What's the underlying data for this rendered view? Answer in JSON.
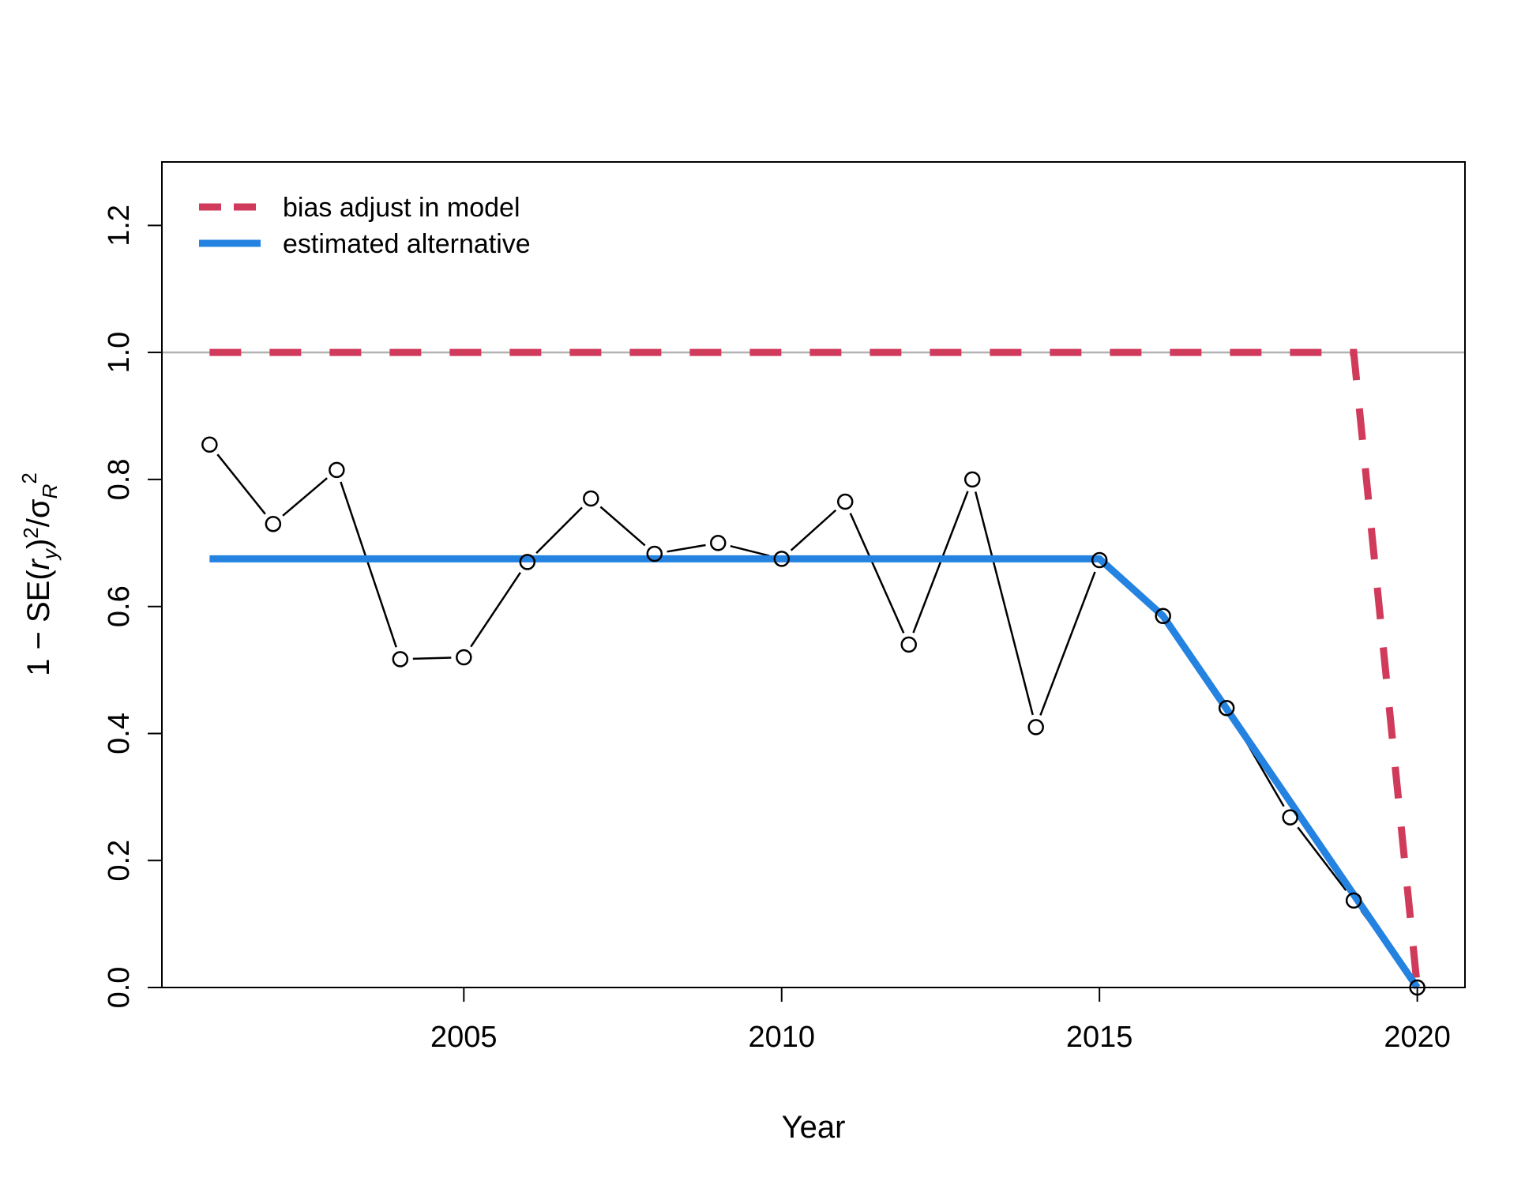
{
  "chart_data": {
    "type": "line",
    "xlabel": "Year",
    "ylabel": {
      "prefix": "1 − SE(",
      "r": "r",
      "hat": "^",
      "sub_y": "y",
      "mid": ")",
      "sq": "2",
      "slash": "/",
      "sigma": "σ",
      "sub_R": "R"
    },
    "xlim": [
      2000.25,
      2020.75
    ],
    "ylim": [
      0,
      1.3
    ],
    "x_ticks": [
      2005,
      2010,
      2015,
      2020
    ],
    "y_ticks": [
      0.0,
      0.2,
      0.4,
      0.6,
      0.8,
      1.0,
      1.2
    ],
    "y_tick_labels": [
      "0.0",
      "0.2",
      "0.4",
      "0.6",
      "0.8",
      "1.0",
      "1.2"
    ],
    "reference_line": {
      "y": 1.0,
      "color": "#b3b3b3"
    },
    "legend": {
      "position": "top-left",
      "entries": [
        {
          "label": "bias adjust in model",
          "color": "#d03b5b",
          "style": "dashed"
        },
        {
          "label": "estimated alternative",
          "color": "#2483e0",
          "style": "solid"
        }
      ]
    },
    "series": [
      {
        "id": "points",
        "color": "#000000",
        "style": "line-with-open-circles",
        "x": [
          2001,
          2002,
          2003,
          2004,
          2005,
          2006,
          2007,
          2008,
          2009,
          2010,
          2011,
          2012,
          2013,
          2014,
          2015,
          2016,
          2017,
          2018,
          2019,
          2020
        ],
        "y": [
          0.855,
          0.73,
          0.815,
          0.517,
          0.52,
          0.67,
          0.77,
          0.683,
          0.7,
          0.675,
          0.765,
          0.54,
          0.8,
          0.41,
          0.673,
          0.585,
          0.44,
          0.268,
          0.137,
          0.0
        ]
      },
      {
        "name": "bias adjust in model",
        "color": "#d03b5b",
        "style": "dashed",
        "x": [
          2001,
          2019,
          2020
        ],
        "y": [
          1.0,
          1.0,
          0.0
        ]
      },
      {
        "name": "estimated alternative",
        "color": "#2483e0",
        "style": "solid",
        "x": [
          2001,
          2015,
          2016,
          2020
        ],
        "y": [
          0.675,
          0.675,
          0.585,
          0.0
        ]
      }
    ]
  }
}
